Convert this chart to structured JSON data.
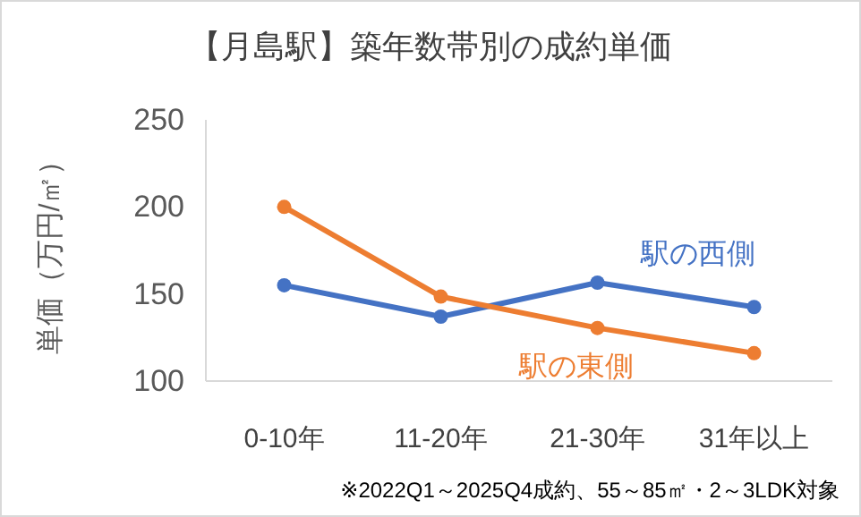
{
  "chart_data": {
    "type": "line",
    "title": "【月島駅】築年数帯別の成約単価",
    "ylabel": "単価（万円/㎡）",
    "categories": [
      "0-10年",
      "11-20年",
      "21-30年",
      "31年以上"
    ],
    "series": [
      {
        "name": "駅の西側",
        "color": "#4472c4",
        "values": [
          155,
          137,
          156.5,
          142.5
        ]
      },
      {
        "name": "駅の東側",
        "color": "#ed7d31",
        "values": [
          200,
          148.5,
          130.5,
          116
        ]
      }
    ],
    "ylim": [
      100,
      250
    ],
    "yticks": [
      100,
      150,
      200,
      250
    ],
    "grid": false,
    "marker": "circle",
    "line_style": "solid",
    "annotations": [
      "※2022Q1～2025Q4成約、55～85㎡・2～3LDK対象"
    ]
  }
}
